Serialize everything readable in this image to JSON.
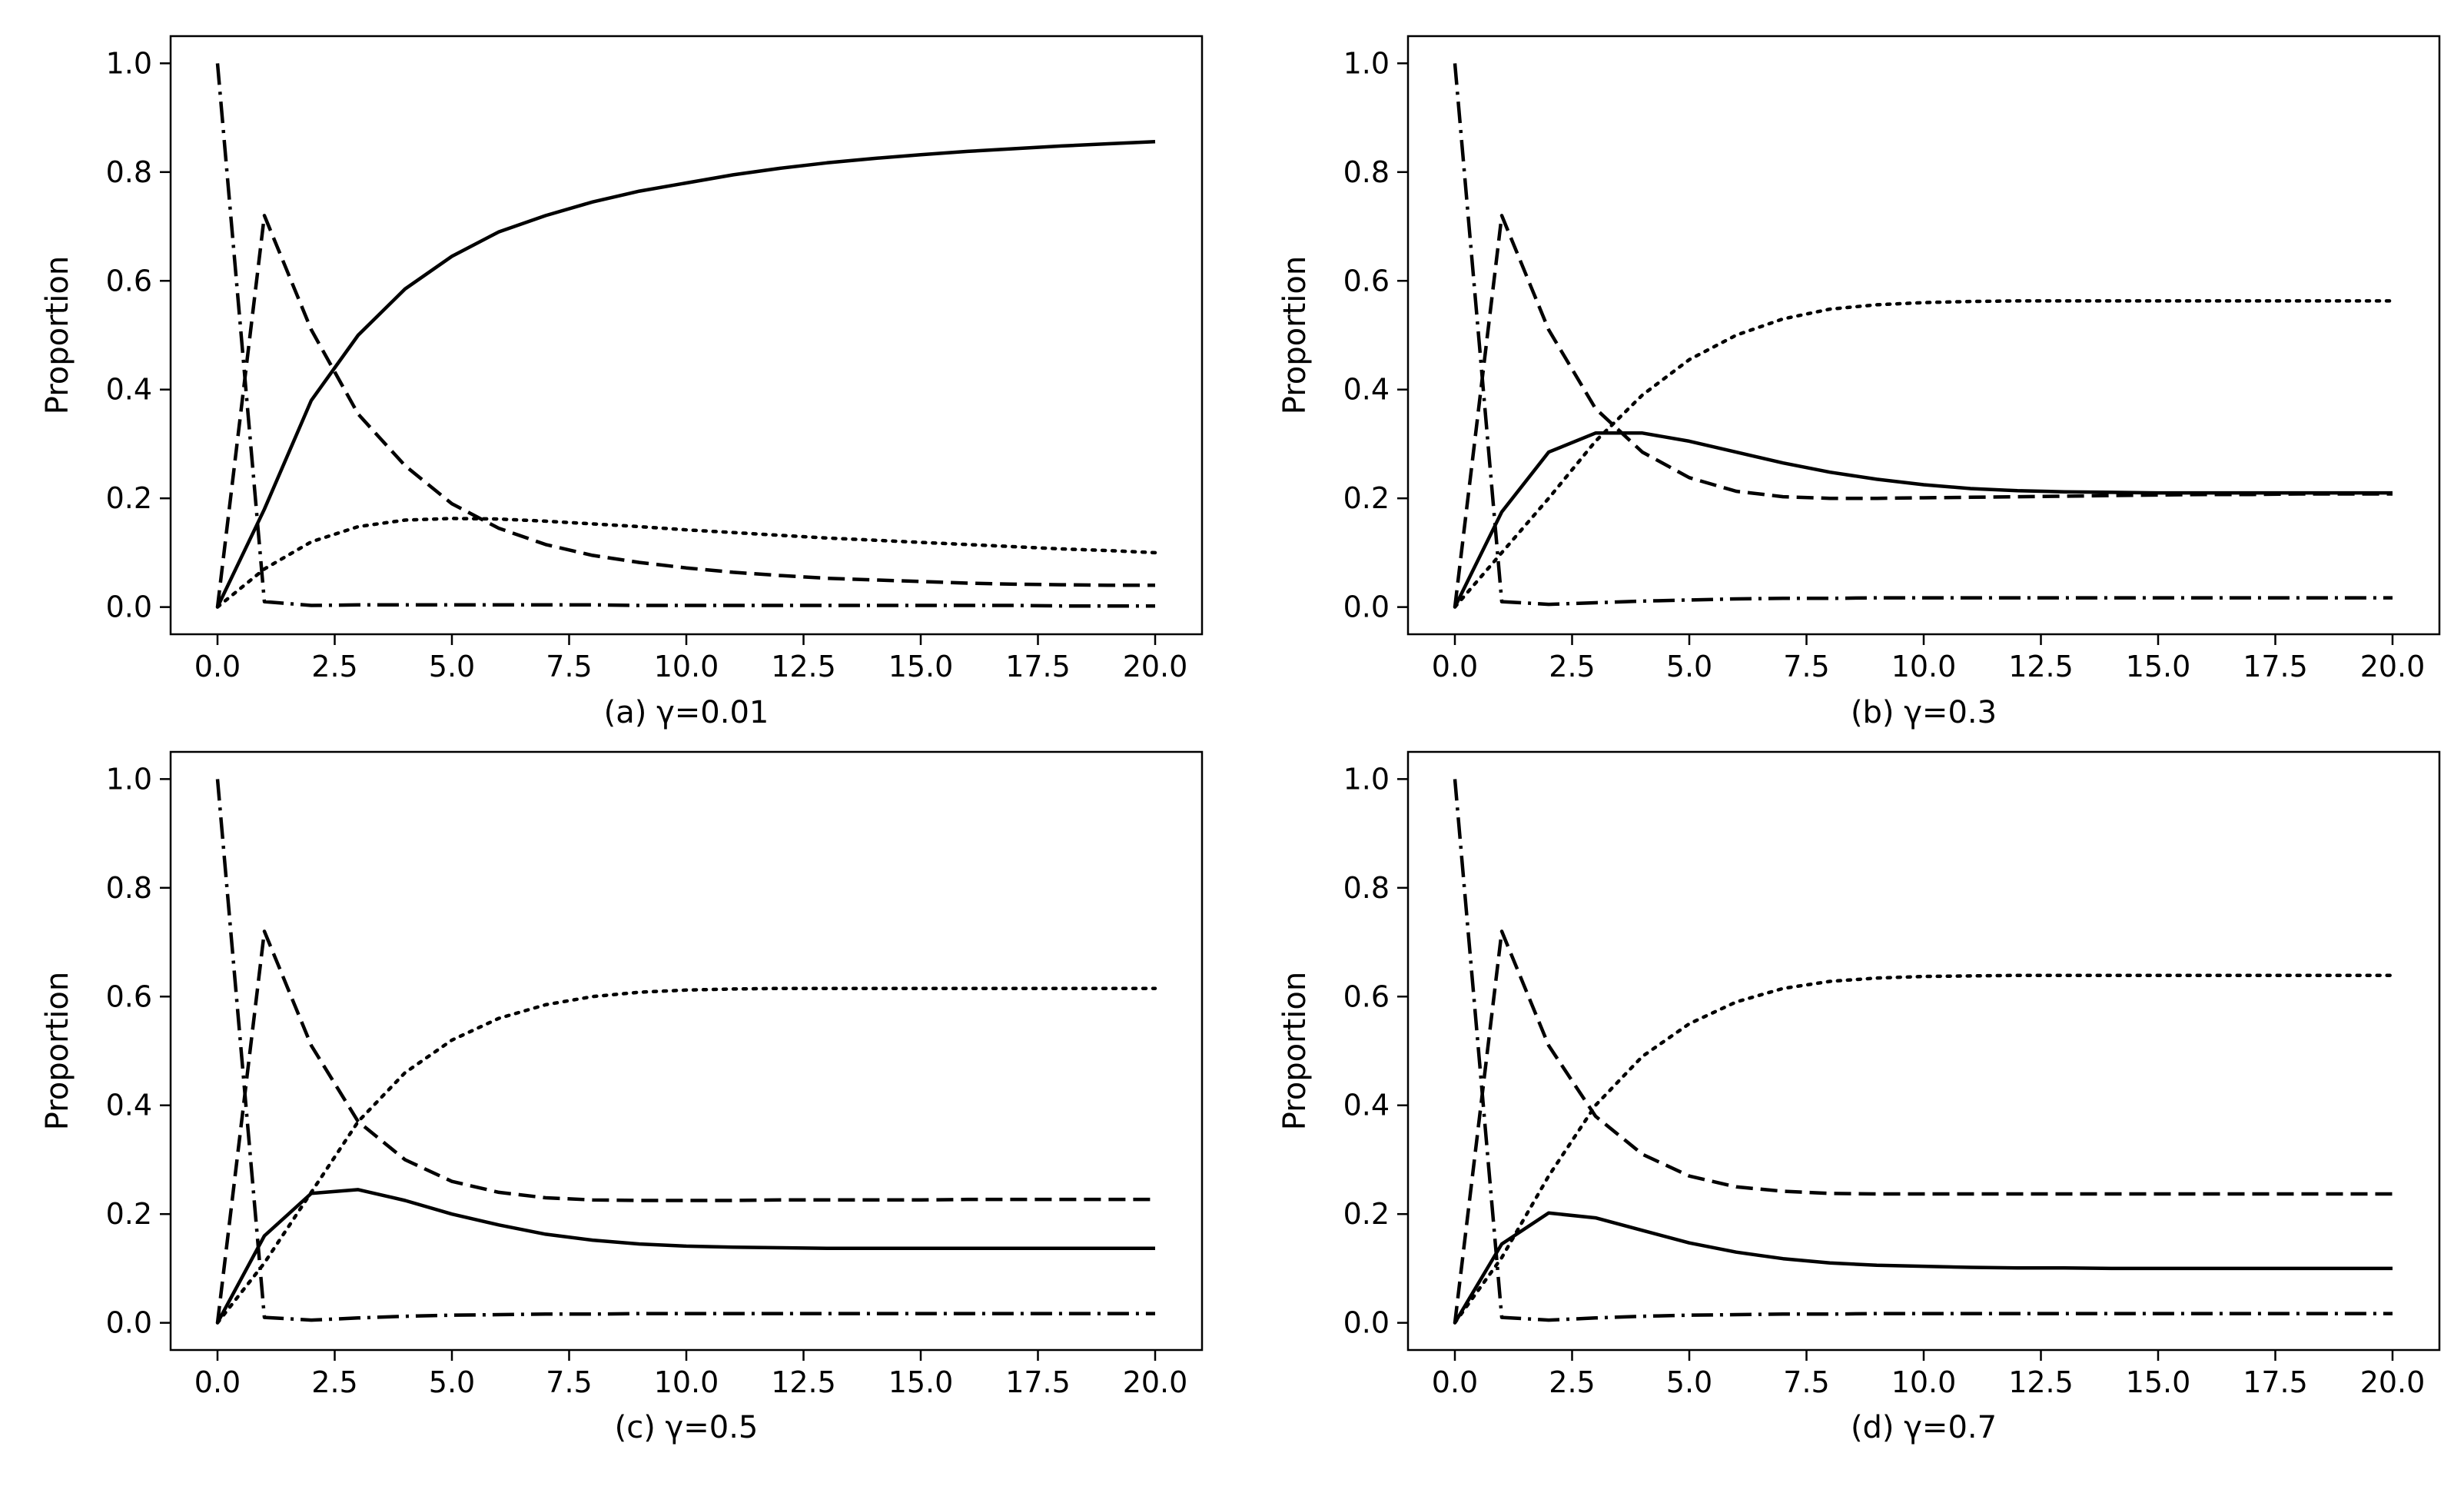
{
  "figure": {
    "caption_note": "Four panels showing Proportion vs time for different gamma values"
  },
  "chart_data": [
    {
      "type": "line",
      "panel_label": "(a) γ=0.01",
      "ylabel": "Proportion",
      "xlabel": "",
      "xlim": [
        -1.0,
        21.0
      ],
      "ylim": [
        -0.05,
        1.05
      ],
      "xticks": [
        "0.0",
        "2.5",
        "5.0",
        "7.5",
        "10.0",
        "12.5",
        "15.0",
        "17.5",
        "20.0"
      ],
      "yticks": [
        "0.0",
        "0.2",
        "0.4",
        "0.6",
        "0.8",
        "1.0"
      ],
      "x": [
        0,
        1,
        2,
        3,
        4,
        5,
        6,
        7,
        8,
        9,
        10,
        11,
        12,
        13,
        14,
        15,
        16,
        17,
        18,
        19,
        20
      ],
      "series": [
        {
          "name": "solid",
          "style": "solid",
          "values": [
            0.0,
            0.18,
            0.38,
            0.5,
            0.585,
            0.645,
            0.69,
            0.72,
            0.745,
            0.765,
            0.78,
            0.795,
            0.807,
            0.817,
            0.825,
            0.832,
            0.838,
            0.843,
            0.848,
            0.852,
            0.856
          ]
        },
        {
          "name": "dashed",
          "style": "dashed",
          "values": [
            0.0,
            0.72,
            0.51,
            0.355,
            0.26,
            0.19,
            0.145,
            0.115,
            0.095,
            0.082,
            0.072,
            0.064,
            0.058,
            0.053,
            0.05,
            0.047,
            0.044,
            0.042,
            0.041,
            0.04,
            0.04
          ]
        },
        {
          "name": "dotted",
          "style": "dotted",
          "values": [
            0.0,
            0.07,
            0.12,
            0.148,
            0.16,
            0.163,
            0.162,
            0.158,
            0.153,
            0.148,
            0.142,
            0.137,
            0.132,
            0.127,
            0.123,
            0.119,
            0.115,
            0.111,
            0.107,
            0.104,
            0.1
          ]
        },
        {
          "name": "dashdot",
          "style": "dashdot",
          "values": [
            1.0,
            0.01,
            0.003,
            0.004,
            0.004,
            0.004,
            0.004,
            0.004,
            0.004,
            0.003,
            0.003,
            0.003,
            0.003,
            0.003,
            0.003,
            0.003,
            0.003,
            0.003,
            0.002,
            0.002,
            0.002
          ]
        }
      ]
    },
    {
      "type": "line",
      "panel_label": "(b) γ=0.3",
      "ylabel": "Proportion",
      "xlabel": "",
      "xlim": [
        -1.0,
        21.0
      ],
      "ylim": [
        -0.05,
        1.05
      ],
      "xticks": [
        "0.0",
        "2.5",
        "5.0",
        "7.5",
        "10.0",
        "12.5",
        "15.0",
        "17.5",
        "20.0"
      ],
      "yticks": [
        "0.0",
        "0.2",
        "0.4",
        "0.6",
        "0.8",
        "1.0"
      ],
      "x": [
        0,
        1,
        2,
        3,
        4,
        5,
        6,
        7,
        8,
        9,
        10,
        11,
        12,
        13,
        14,
        15,
        16,
        17,
        18,
        19,
        20
      ],
      "series": [
        {
          "name": "solid",
          "style": "solid",
          "values": [
            0.0,
            0.175,
            0.285,
            0.32,
            0.32,
            0.305,
            0.285,
            0.265,
            0.248,
            0.235,
            0.225,
            0.218,
            0.214,
            0.212,
            0.211,
            0.21,
            0.21,
            0.21,
            0.21,
            0.21,
            0.21
          ]
        },
        {
          "name": "dashed",
          "style": "dashed",
          "values": [
            0.0,
            0.72,
            0.51,
            0.365,
            0.285,
            0.238,
            0.213,
            0.203,
            0.2,
            0.2,
            0.201,
            0.202,
            0.203,
            0.204,
            0.205,
            0.206,
            0.207,
            0.207,
            0.208,
            0.208,
            0.208
          ]
        },
        {
          "name": "dotted",
          "style": "dotted",
          "values": [
            0.0,
            0.1,
            0.2,
            0.305,
            0.39,
            0.455,
            0.5,
            0.53,
            0.548,
            0.556,
            0.56,
            0.562,
            0.563,
            0.563,
            0.563,
            0.563,
            0.563,
            0.563,
            0.563,
            0.563,
            0.563
          ]
        },
        {
          "name": "dashdot",
          "style": "dashdot",
          "values": [
            1.0,
            0.01,
            0.005,
            0.008,
            0.011,
            0.013,
            0.015,
            0.016,
            0.016,
            0.017,
            0.017,
            0.017,
            0.017,
            0.017,
            0.017,
            0.017,
            0.017,
            0.017,
            0.017,
            0.017,
            0.017
          ]
        }
      ]
    },
    {
      "type": "line",
      "panel_label": "(c) γ=0.5",
      "ylabel": "Proportion",
      "xlabel": "",
      "xlim": [
        -1.0,
        21.0
      ],
      "ylim": [
        -0.05,
        1.05
      ],
      "xticks": [
        "0.0",
        "2.5",
        "5.0",
        "7.5",
        "10.0",
        "12.5",
        "15.0",
        "17.5",
        "20.0"
      ],
      "yticks": [
        "0.0",
        "0.2",
        "0.4",
        "0.6",
        "0.8",
        "1.0"
      ],
      "x": [
        0,
        1,
        2,
        3,
        4,
        5,
        6,
        7,
        8,
        9,
        10,
        11,
        12,
        13,
        14,
        15,
        16,
        17,
        18,
        19,
        20
      ],
      "series": [
        {
          "name": "solid",
          "style": "solid",
          "values": [
            0.0,
            0.16,
            0.238,
            0.245,
            0.225,
            0.2,
            0.18,
            0.163,
            0.152,
            0.145,
            0.141,
            0.139,
            0.138,
            0.137,
            0.137,
            0.137,
            0.137,
            0.137,
            0.137,
            0.137,
            0.137
          ]
        },
        {
          "name": "dashed",
          "style": "dashed",
          "values": [
            0.0,
            0.72,
            0.51,
            0.37,
            0.3,
            0.26,
            0.24,
            0.23,
            0.226,
            0.225,
            0.225,
            0.225,
            0.226,
            0.226,
            0.226,
            0.226,
            0.227,
            0.227,
            0.227,
            0.227,
            0.227
          ]
        },
        {
          "name": "dotted",
          "style": "dotted",
          "values": [
            0.0,
            0.11,
            0.24,
            0.37,
            0.46,
            0.52,
            0.56,
            0.585,
            0.6,
            0.608,
            0.612,
            0.614,
            0.615,
            0.615,
            0.615,
            0.615,
            0.615,
            0.615,
            0.615,
            0.615,
            0.615
          ]
        },
        {
          "name": "dashdot",
          "style": "dashdot",
          "values": [
            1.0,
            0.01,
            0.005,
            0.009,
            0.012,
            0.014,
            0.015,
            0.016,
            0.016,
            0.017,
            0.017,
            0.017,
            0.017,
            0.017,
            0.017,
            0.017,
            0.017,
            0.017,
            0.017,
            0.017,
            0.017
          ]
        }
      ]
    },
    {
      "type": "line",
      "panel_label": "(d) γ=0.7",
      "ylabel": "Proportion",
      "xlabel": "",
      "xlim": [
        -1.0,
        21.0
      ],
      "ylim": [
        -0.05,
        1.05
      ],
      "xticks": [
        "0.0",
        "2.5",
        "5.0",
        "7.5",
        "10.0",
        "12.5",
        "15.0",
        "17.5",
        "20.0"
      ],
      "yticks": [
        "0.0",
        "0.2",
        "0.4",
        "0.6",
        "0.8",
        "1.0"
      ],
      "x": [
        0,
        1,
        2,
        3,
        4,
        5,
        6,
        7,
        8,
        9,
        10,
        11,
        12,
        13,
        14,
        15,
        16,
        17,
        18,
        19,
        20
      ],
      "series": [
        {
          "name": "solid",
          "style": "solid",
          "values": [
            0.0,
            0.145,
            0.202,
            0.193,
            0.17,
            0.147,
            0.13,
            0.118,
            0.11,
            0.106,
            0.104,
            0.102,
            0.101,
            0.101,
            0.1,
            0.1,
            0.1,
            0.1,
            0.1,
            0.1,
            0.1
          ]
        },
        {
          "name": "dashed",
          "style": "dashed",
          "values": [
            0.0,
            0.72,
            0.51,
            0.38,
            0.31,
            0.27,
            0.25,
            0.242,
            0.238,
            0.237,
            0.237,
            0.237,
            0.237,
            0.237,
            0.237,
            0.237,
            0.237,
            0.237,
            0.237,
            0.237,
            0.237
          ]
        },
        {
          "name": "dotted",
          "style": "dotted",
          "values": [
            0.0,
            0.12,
            0.27,
            0.4,
            0.49,
            0.55,
            0.59,
            0.615,
            0.628,
            0.634,
            0.637,
            0.638,
            0.639,
            0.639,
            0.639,
            0.639,
            0.639,
            0.639,
            0.639,
            0.639,
            0.639
          ]
        },
        {
          "name": "dashdot",
          "style": "dashdot",
          "values": [
            1.0,
            0.01,
            0.005,
            0.009,
            0.012,
            0.014,
            0.015,
            0.016,
            0.016,
            0.017,
            0.017,
            0.017,
            0.017,
            0.017,
            0.017,
            0.017,
            0.017,
            0.017,
            0.017,
            0.017,
            0.017
          ]
        }
      ]
    }
  ]
}
